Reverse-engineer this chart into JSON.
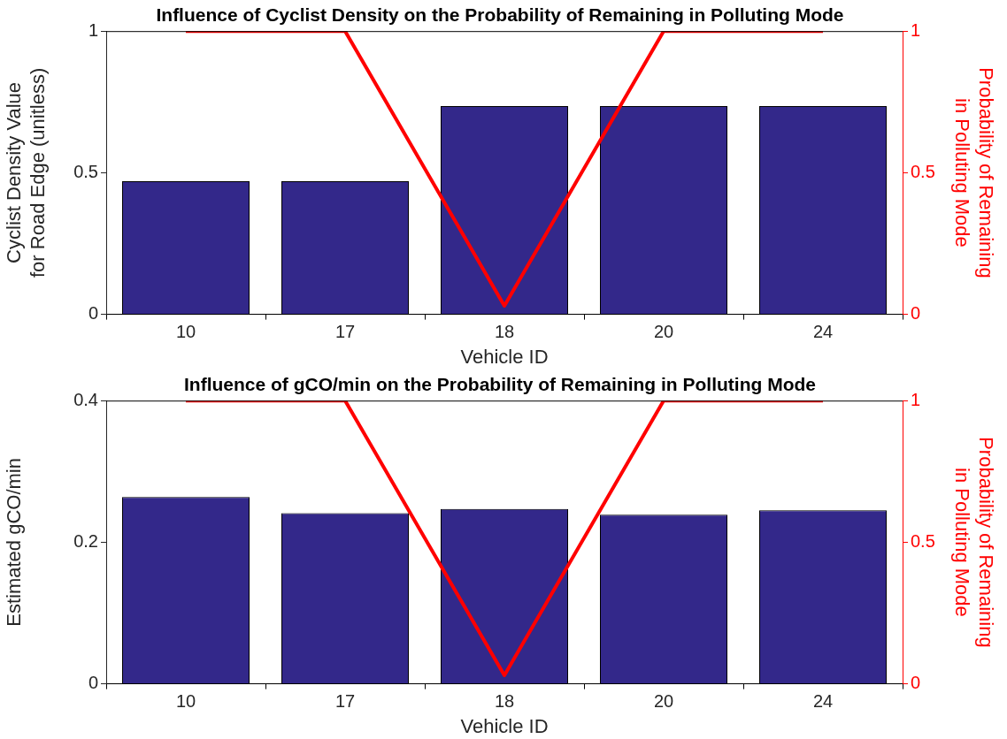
{
  "chart_data": [
    {
      "type": "bar",
      "title": "Influence of Cyclist Density on the Probability of Remaining in Polluting Mode",
      "xlabel": "Vehicle ID",
      "ylabel": "Cyclist Density Value\nfor Road Edge (unitless)",
      "y2label": "Probability of Remaining\nin Polluting Mode",
      "categories": [
        "10",
        "17",
        "18",
        "20",
        "24"
      ],
      "series": [
        {
          "color": "#33288a",
          "values": [
            0.47,
            0.47,
            0.735,
            0.735,
            0.735
          ]
        },
        {
          "type": "line",
          "axis": "y2",
          "color": "#ff0000",
          "values": [
            1,
            1,
            0.03,
            1,
            1
          ]
        }
      ],
      "ylim": [
        0,
        1
      ],
      "yticks": [
        0,
        0.5,
        1
      ],
      "y2lim": [
        0,
        1
      ],
      "y2ticks": [
        0,
        0.5,
        1
      ],
      "grid": false,
      "legend": false,
      "marker": "none",
      "line_style": "solid"
    },
    {
      "type": "bar",
      "title": "Influence of gCO/min on the Probability of Remaining in Polluting Mode",
      "xlabel": "Vehicle ID",
      "ylabel": "Estimated gCO/min",
      "y2label": "Probability of Remaining\nin Polluting Mode",
      "categories": [
        "10",
        "17",
        "18",
        "20",
        "24"
      ],
      "series": [
        {
          "color": "#33288a",
          "values": [
            0.264,
            0.241,
            0.247,
            0.239,
            0.245
          ]
        },
        {
          "type": "line",
          "axis": "y2",
          "color": "#ff0000",
          "values": [
            1,
            1,
            0.03,
            1,
            1
          ]
        }
      ],
      "ylim": [
        0,
        0.4
      ],
      "yticks": [
        0,
        0.2,
        0.4
      ],
      "y2lim": [
        0,
        1
      ],
      "y2ticks": [
        0,
        0.5,
        1
      ],
      "grid": false,
      "legend": false,
      "marker": "none",
      "line_style": "solid"
    }
  ]
}
